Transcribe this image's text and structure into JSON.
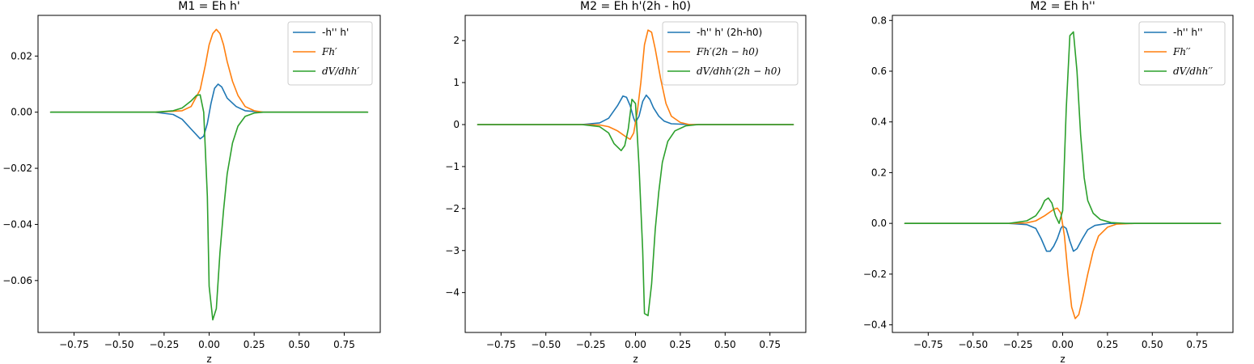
{
  "chart_data": [
    {
      "type": "line",
      "title": "M1 = Eh h'",
      "xlabel": "z",
      "ylabel": "",
      "xlim": [
        -0.95,
        0.95
      ],
      "ylim": [
        -0.0785,
        0.0345
      ],
      "xticks": [
        -0.75,
        -0.5,
        -0.25,
        0.0,
        0.25,
        0.5,
        0.75
      ],
      "xtick_labels": [
        "−0.75",
        "−0.50",
        "−0.25",
        "0.00",
        "0.25",
        "0.50",
        "0.75"
      ],
      "yticks": [
        0.02,
        0.0,
        -0.02,
        -0.04,
        -0.06
      ],
      "ytick_labels": [
        "0.02",
        "0.00",
        "−0.02",
        "−0.04",
        "−0.06"
      ],
      "legend_position": "top-right",
      "grid": false,
      "series": [
        {
          "name": "-h'' h'",
          "math": false,
          "color": "#1f77b4",
          "points": [
            [
              -0.88,
              0
            ],
            [
              -0.3,
              0
            ],
            [
              -0.2,
              -0.0008
            ],
            [
              -0.15,
              -0.0025
            ],
            [
              -0.1,
              -0.006
            ],
            [
              -0.05,
              -0.0095
            ],
            [
              -0.03,
              -0.0085
            ],
            [
              -0.01,
              -0.004
            ],
            [
              0.01,
              0.003
            ],
            [
              0.03,
              0.0085
            ],
            [
              0.05,
              0.01
            ],
            [
              0.07,
              0.009
            ],
            [
              0.1,
              0.005
            ],
            [
              0.15,
              0.002
            ],
            [
              0.2,
              0.0005
            ],
            [
              0.3,
              0
            ],
            [
              0.88,
              0
            ]
          ]
        },
        {
          "name": "Fh′",
          "math": true,
          "color": "#ff7f0e",
          "points": [
            [
              -0.88,
              0
            ],
            [
              -0.3,
              0
            ],
            [
              -0.15,
              0.0005
            ],
            [
              -0.1,
              0.002
            ],
            [
              -0.05,
              0.008
            ],
            [
              -0.02,
              0.017
            ],
            [
              0.0,
              0.024
            ],
            [
              0.02,
              0.028
            ],
            [
              0.04,
              0.0295
            ],
            [
              0.06,
              0.028
            ],
            [
              0.08,
              0.024
            ],
            [
              0.1,
              0.018
            ],
            [
              0.13,
              0.011
            ],
            [
              0.16,
              0.006
            ],
            [
              0.2,
              0.002
            ],
            [
              0.25,
              0.0005
            ],
            [
              0.3,
              0
            ],
            [
              0.88,
              0
            ]
          ]
        },
        {
          "name": "dV/dhh′",
          "math": true,
          "color": "#2ca02c",
          "points": [
            [
              -0.88,
              0
            ],
            [
              -0.3,
              0
            ],
            [
              -0.2,
              0.0005
            ],
            [
              -0.15,
              0.0015
            ],
            [
              -0.1,
              0.004
            ],
            [
              -0.07,
              0.006
            ],
            [
              -0.05,
              0.0062
            ],
            [
              -0.03,
              0.0
            ],
            [
              -0.01,
              -0.03
            ],
            [
              0.0,
              -0.062
            ],
            [
              0.02,
              -0.074
            ],
            [
              0.04,
              -0.07
            ],
            [
              0.06,
              -0.05
            ],
            [
              0.08,
              -0.035
            ],
            [
              0.1,
              -0.022
            ],
            [
              0.13,
              -0.011
            ],
            [
              0.16,
              -0.005
            ],
            [
              0.2,
              -0.0015
            ],
            [
              0.25,
              -0.0003
            ],
            [
              0.3,
              0
            ],
            [
              0.88,
              0
            ]
          ]
        }
      ]
    },
    {
      "type": "line",
      "title": "M2 = Eh h'(2h - h0)",
      "xlabel": "z",
      "ylabel": "",
      "xlim": [
        -0.95,
        0.95
      ],
      "ylim": [
        -4.95,
        2.6
      ],
      "xticks": [
        -0.75,
        -0.5,
        -0.25,
        0.0,
        0.25,
        0.5,
        0.75
      ],
      "xtick_labels": [
        "−0.75",
        "−0.50",
        "−0.25",
        "0.00",
        "0.25",
        "0.50",
        "0.75"
      ],
      "yticks": [
        2,
        1,
        0,
        -1,
        -2,
        -3,
        -4
      ],
      "ytick_labels": [
        "2",
        "1",
        "0",
        "−1",
        "−2",
        "−3",
        "−4"
      ],
      "legend_position": "top-right",
      "grid": false,
      "series": [
        {
          "name": "-h'' h' (2h-h0)",
          "math": false,
          "color": "#1f77b4",
          "points": [
            [
              -0.88,
              0
            ],
            [
              -0.3,
              0
            ],
            [
              -0.2,
              0.04
            ],
            [
              -0.15,
              0.15
            ],
            [
              -0.1,
              0.45
            ],
            [
              -0.07,
              0.68
            ],
            [
              -0.05,
              0.65
            ],
            [
              -0.03,
              0.45
            ],
            [
              -0.01,
              0.15
            ],
            [
              0.0,
              0.05
            ],
            [
              0.02,
              0.2
            ],
            [
              0.04,
              0.55
            ],
            [
              0.06,
              0.7
            ],
            [
              0.08,
              0.6
            ],
            [
              0.1,
              0.4
            ],
            [
              0.13,
              0.2
            ],
            [
              0.16,
              0.08
            ],
            [
              0.2,
              0.02
            ],
            [
              0.3,
              0
            ],
            [
              0.88,
              0
            ]
          ]
        },
        {
          "name": "Fh′(2h − h0)",
          "math": true,
          "color": "#ff7f0e",
          "points": [
            [
              -0.88,
              0
            ],
            [
              -0.3,
              0
            ],
            [
              -0.2,
              -0.01
            ],
            [
              -0.15,
              -0.05
            ],
            [
              -0.1,
              -0.15
            ],
            [
              -0.05,
              -0.3
            ],
            [
              -0.03,
              -0.35
            ],
            [
              -0.01,
              -0.2
            ],
            [
              0.01,
              0.3
            ],
            [
              0.03,
              1.0
            ],
            [
              0.05,
              1.9
            ],
            [
              0.07,
              2.25
            ],
            [
              0.09,
              2.2
            ],
            [
              0.11,
              1.8
            ],
            [
              0.14,
              1.1
            ],
            [
              0.17,
              0.5
            ],
            [
              0.2,
              0.2
            ],
            [
              0.25,
              0.05
            ],
            [
              0.3,
              0
            ],
            [
              0.88,
              0
            ]
          ]
        },
        {
          "name": "dV/dhh′(2h − h0)",
          "math": true,
          "color": "#2ca02c",
          "points": [
            [
              -0.88,
              0
            ],
            [
              -0.3,
              0
            ],
            [
              -0.2,
              -0.05
            ],
            [
              -0.15,
              -0.2
            ],
            [
              -0.12,
              -0.45
            ],
            [
              -0.08,
              -0.62
            ],
            [
              -0.06,
              -0.5
            ],
            [
              -0.04,
              -0.1
            ],
            [
              -0.02,
              0.6
            ],
            [
              0.0,
              0.5
            ],
            [
              0.02,
              -1.0
            ],
            [
              0.04,
              -3.0
            ],
            [
              0.05,
              -4.5
            ],
            [
              0.07,
              -4.55
            ],
            [
              0.09,
              -3.8
            ],
            [
              0.11,
              -2.5
            ],
            [
              0.13,
              -1.6
            ],
            [
              0.15,
              -0.9
            ],
            [
              0.18,
              -0.4
            ],
            [
              0.22,
              -0.15
            ],
            [
              0.28,
              -0.03
            ],
            [
              0.35,
              0
            ],
            [
              0.88,
              0
            ]
          ]
        }
      ]
    },
    {
      "type": "line",
      "title": "M2 = Eh h''",
      "xlabel": "z",
      "ylabel": "",
      "xlim": [
        -0.95,
        0.95
      ],
      "ylim": [
        -0.43,
        0.82
      ],
      "xticks": [
        -0.75,
        -0.5,
        -0.25,
        0.0,
        0.25,
        0.5,
        0.75
      ],
      "xtick_labels": [
        "−0.75",
        "−0.50",
        "−0.25",
        "0.00",
        "0.25",
        "0.50",
        "0.75"
      ],
      "yticks": [
        0.8,
        0.6,
        0.4,
        0.2,
        0.0,
        -0.2,
        -0.4
      ],
      "ytick_labels": [
        "0.8",
        "0.6",
        "0.4",
        "0.2",
        "0.0",
        "−0.2",
        "−0.4"
      ],
      "legend_position": "top-right",
      "grid": false,
      "series": [
        {
          "name": "-h'' h''",
          "math": false,
          "color": "#1f77b4",
          "points": [
            [
              -0.88,
              0
            ],
            [
              -0.3,
              0
            ],
            [
              -0.2,
              -0.005
            ],
            [
              -0.15,
              -0.02
            ],
            [
              -0.12,
              -0.06
            ],
            [
              -0.09,
              -0.11
            ],
            [
              -0.07,
              -0.11
            ],
            [
              -0.05,
              -0.09
            ],
            [
              -0.03,
              -0.06
            ],
            [
              -0.01,
              -0.02
            ],
            [
              0.0,
              -0.01
            ],
            [
              0.02,
              -0.02
            ],
            [
              0.04,
              -0.07
            ],
            [
              0.06,
              -0.11
            ],
            [
              0.08,
              -0.1
            ],
            [
              0.11,
              -0.06
            ],
            [
              0.14,
              -0.025
            ],
            [
              0.18,
              -0.008
            ],
            [
              0.25,
              0
            ],
            [
              0.88,
              0
            ]
          ]
        },
        {
          "name": "Fh′′",
          "math": true,
          "color": "#ff7f0e",
          "points": [
            [
              -0.88,
              0
            ],
            [
              -0.3,
              0
            ],
            [
              -0.2,
              0.002
            ],
            [
              -0.15,
              0.01
            ],
            [
              -0.1,
              0.03
            ],
            [
              -0.05,
              0.055
            ],
            [
              -0.03,
              0.06
            ],
            [
              -0.01,
              0.04
            ],
            [
              0.01,
              -0.05
            ],
            [
              0.03,
              -0.2
            ],
            [
              0.05,
              -0.33
            ],
            [
              0.07,
              -0.375
            ],
            [
              0.09,
              -0.36
            ],
            [
              0.11,
              -0.3
            ],
            [
              0.14,
              -0.2
            ],
            [
              0.17,
              -0.11
            ],
            [
              0.2,
              -0.05
            ],
            [
              0.25,
              -0.015
            ],
            [
              0.3,
              -0.003
            ],
            [
              0.4,
              0
            ],
            [
              0.88,
              0
            ]
          ]
        },
        {
          "name": "dV/dhh′′",
          "math": true,
          "color": "#2ca02c",
          "points": [
            [
              -0.88,
              0
            ],
            [
              -0.3,
              0
            ],
            [
              -0.2,
              0.01
            ],
            [
              -0.15,
              0.03
            ],
            [
              -0.12,
              0.06
            ],
            [
              -0.1,
              0.09
            ],
            [
              -0.08,
              0.1
            ],
            [
              -0.06,
              0.08
            ],
            [
              -0.04,
              0.03
            ],
            [
              -0.02,
              0.0
            ],
            [
              0.0,
              0.05
            ],
            [
              0.02,
              0.45
            ],
            [
              0.04,
              0.74
            ],
            [
              0.06,
              0.755
            ],
            [
              0.08,
              0.6
            ],
            [
              0.1,
              0.35
            ],
            [
              0.12,
              0.18
            ],
            [
              0.14,
              0.09
            ],
            [
              0.17,
              0.04
            ],
            [
              0.21,
              0.015
            ],
            [
              0.27,
              0.003
            ],
            [
              0.35,
              0
            ],
            [
              0.88,
              0
            ]
          ]
        }
      ]
    }
  ]
}
